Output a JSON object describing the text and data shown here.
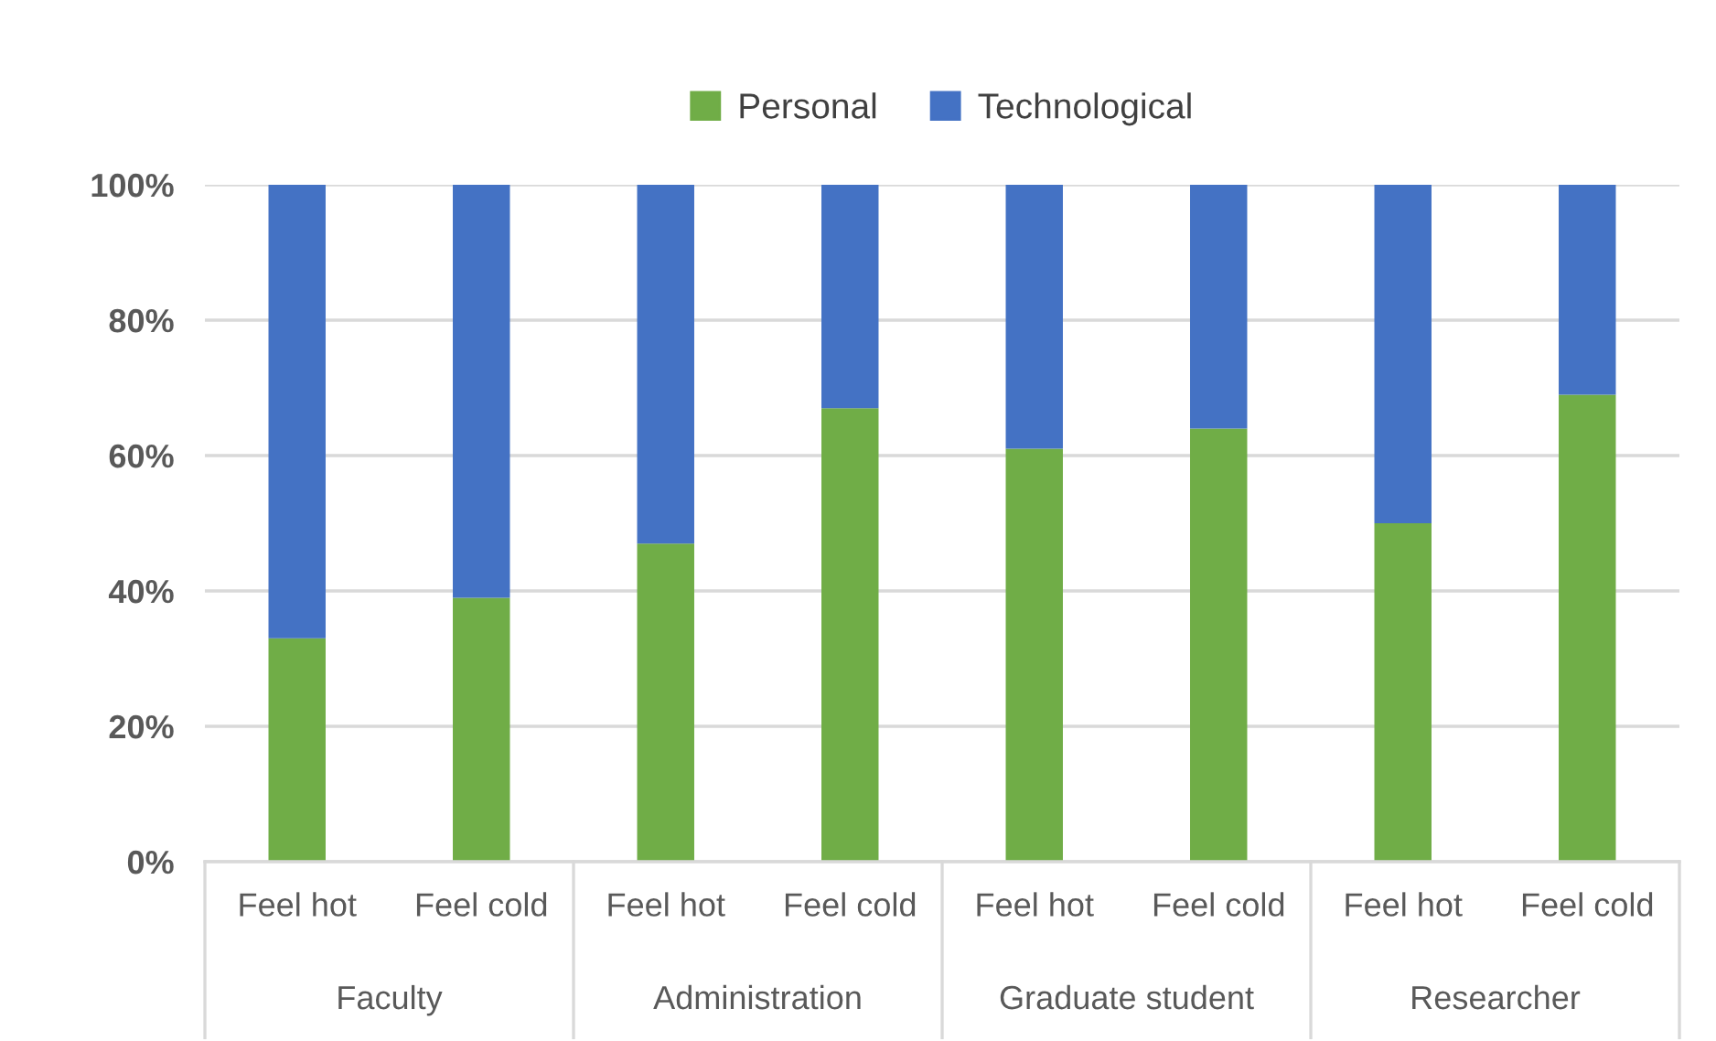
{
  "chart_data": {
    "type": "bar",
    "stacked": true,
    "categories": [
      "Feel hot",
      "Feel cold",
      "Feel hot",
      "Feel cold",
      "Feel hot",
      "Feel cold",
      "Feel hot",
      "Feel cold"
    ],
    "series": [
      {
        "name": "Personal",
        "color": "#70ad47",
        "values": [
          33,
          39,
          47,
          67,
          61,
          64,
          50,
          69
        ]
      },
      {
        "name": "Technological",
        "color": "#4472c4",
        "values": [
          67,
          61,
          53,
          33,
          39,
          36,
          50,
          31
        ]
      }
    ],
    "ylim": [
      0,
      100
    ],
    "yticks": [
      {
        "value": 0,
        "label": "0%"
      },
      {
        "value": 20,
        "label": "20%"
      },
      {
        "value": 40,
        "label": "40%"
      },
      {
        "value": 60,
        "label": "60%"
      },
      {
        "value": 80,
        "label": "80%"
      },
      {
        "value": 100,
        "label": "100%"
      }
    ],
    "grid": "y",
    "legend": "top",
    "annotations": [
      "Faculty",
      "Administration",
      "Graduate student",
      "Researcher"
    ]
  }
}
